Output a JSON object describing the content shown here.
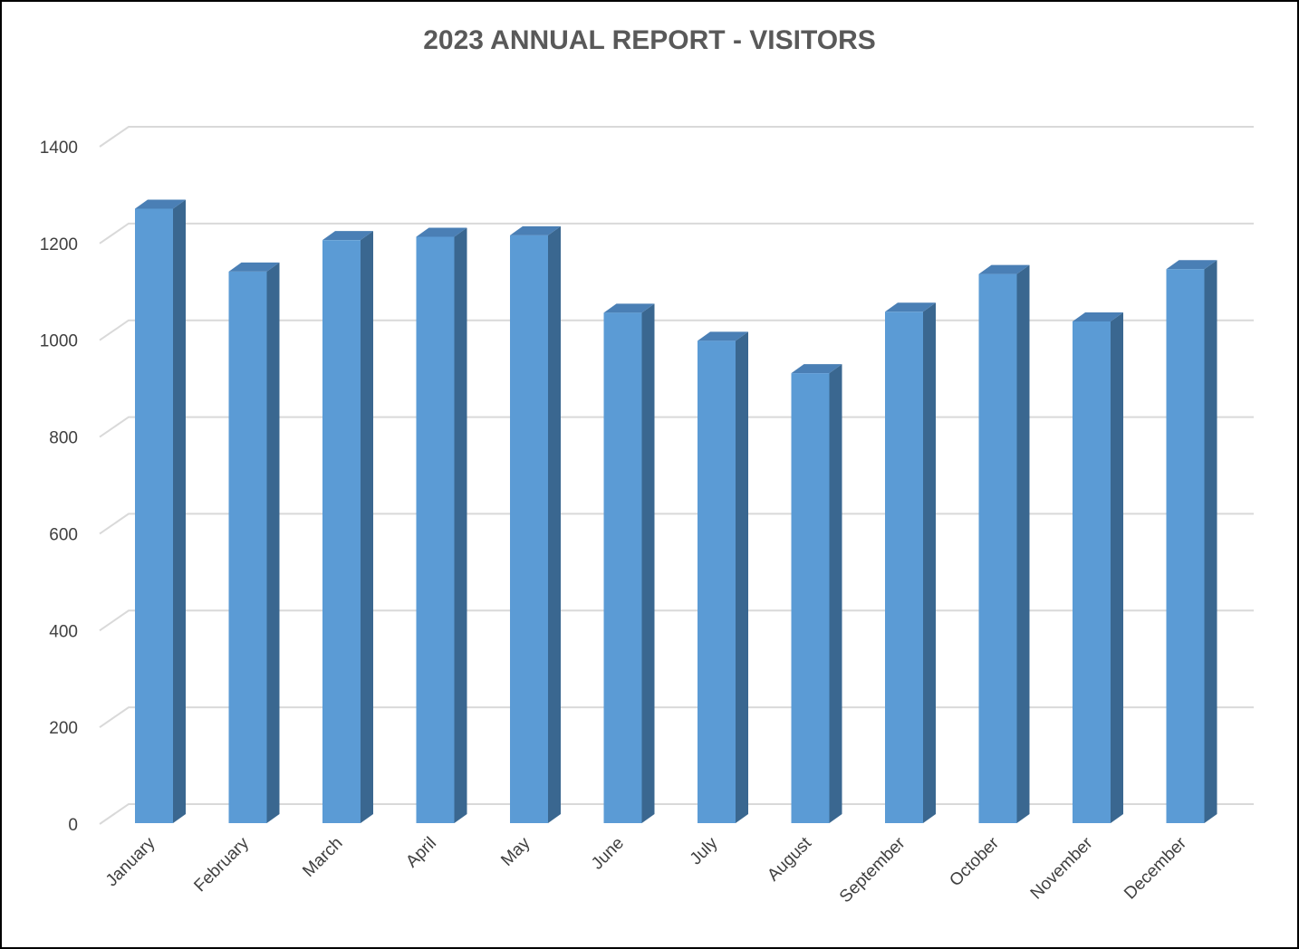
{
  "chart_data": {
    "type": "bar",
    "style": "3d-column",
    "title": "2023 ANNUAL REPORT - VISITORS",
    "xlabel": "",
    "ylabel": "",
    "categories": [
      "January",
      "February",
      "March",
      "April",
      "May",
      "June",
      "July",
      "August",
      "September",
      "October",
      "November",
      "December"
    ],
    "series": [
      {
        "values": [
          1270,
          1140,
          1205,
          1212,
          1215,
          1055,
          997,
          930,
          1057,
          1135,
          1037,
          1145
        ]
      }
    ],
    "ylim": [
      0,
      1400
    ],
    "yticks": [
      "0",
      "200",
      "400",
      "600",
      "800",
      "1000",
      "1200",
      "1400"
    ],
    "grid": true,
    "legend": "none",
    "colors": {
      "bar_front": "#5b9bd5",
      "bar_side": "#3a6790",
      "bar_top": "#4a7fb5",
      "gridline": "#d9d9d9",
      "title": "#595959",
      "text": "#404040"
    }
  }
}
